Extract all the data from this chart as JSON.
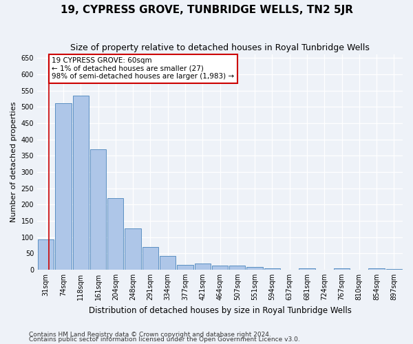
{
  "title": "19, CYPRESS GROVE, TUNBRIDGE WELLS, TN2 5JR",
  "subtitle": "Size of property relative to detached houses in Royal Tunbridge Wells",
  "xlabel": "Distribution of detached houses by size in Royal Tunbridge Wells",
  "ylabel": "Number of detached properties",
  "footnote1": "Contains HM Land Registry data © Crown copyright and database right 2024.",
  "footnote2": "Contains public sector information licensed under the Open Government Licence v3.0.",
  "bin_labels": [
    "31sqm",
    "74sqm",
    "118sqm",
    "161sqm",
    "204sqm",
    "248sqm",
    "291sqm",
    "334sqm",
    "377sqm",
    "421sqm",
    "464sqm",
    "507sqm",
    "551sqm",
    "594sqm",
    "637sqm",
    "681sqm",
    "724sqm",
    "767sqm",
    "810sqm",
    "854sqm",
    "897sqm"
  ],
  "bar_values": [
    93,
    510,
    535,
    370,
    220,
    126,
    70,
    43,
    15,
    19,
    12,
    12,
    9,
    5,
    0,
    5,
    0,
    4,
    0,
    4,
    3
  ],
  "bar_color": "#aec6e8",
  "bar_edge_color": "#5a8fc2",
  "annotation_line1": "19 CYPRESS GROVE: 60sqm",
  "annotation_line2": "← 1% of detached houses are smaller (27)",
  "annotation_line3": "98% of semi-detached houses are larger (1,983) →",
  "annotation_box_facecolor": "#ffffff",
  "annotation_box_edgecolor": "#cc0000",
  "marker_line_color": "#cc0000",
  "ylim": [
    0,
    660
  ],
  "yticks": [
    0,
    50,
    100,
    150,
    200,
    250,
    300,
    350,
    400,
    450,
    500,
    550,
    600,
    650
  ],
  "background_color": "#eef2f8",
  "grid_color": "#ffffff",
  "title_fontsize": 11,
  "subtitle_fontsize": 9,
  "ylabel_fontsize": 8,
  "xlabel_fontsize": 8.5,
  "tick_fontsize": 7,
  "annotation_fontsize": 7.5,
  "footnote_fontsize": 6.5
}
